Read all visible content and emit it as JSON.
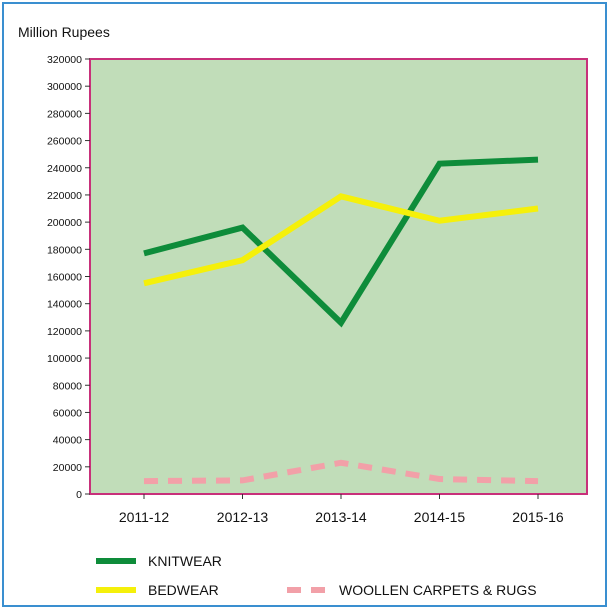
{
  "chart_data": {
    "type": "line",
    "ylabel": "Million Rupees",
    "categories": [
      "2011-12",
      "2012-13",
      "2013-14",
      "2014-15",
      "2015-16"
    ],
    "ylim": [
      0,
      320000
    ],
    "yticks": [
      0,
      20000,
      40000,
      60000,
      80000,
      100000,
      120000,
      140000,
      160000,
      180000,
      200000,
      220000,
      240000,
      260000,
      280000,
      300000,
      320000
    ],
    "grid": false,
    "legend_position": "bottom-left",
    "series": [
      {
        "name": "KNITWEAR",
        "values": [
          177000,
          196000,
          126000,
          243000,
          246000
        ],
        "color": "#0e8c3a",
        "style": "solid"
      },
      {
        "name": "BEDWEAR",
        "values": [
          155000,
          172000,
          219000,
          201000,
          210000
        ],
        "color": "#f5f00a",
        "style": "solid"
      },
      {
        "name": "WOOLLEN CARPETS & RUGS",
        "values": [
          9500,
          10000,
          23000,
          11000,
          9500
        ],
        "color": "#f2a0a8",
        "style": "dashed"
      }
    ]
  },
  "colors": {
    "plot_background": "#c1ddb9",
    "plot_border": "#c8307a",
    "frame_border": "#3a8fd0"
  }
}
